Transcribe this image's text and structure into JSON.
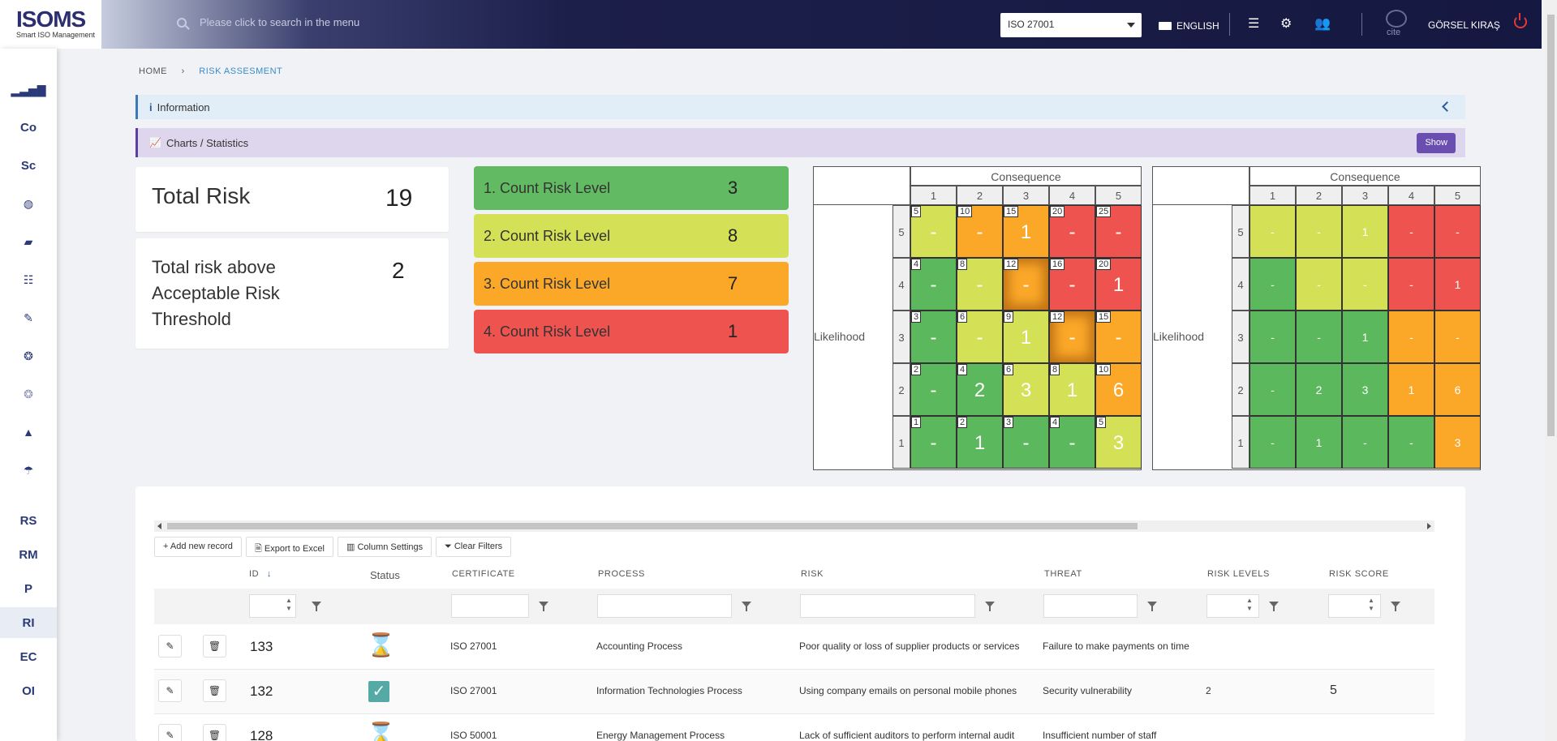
{
  "app": {
    "logo": "ISOMS",
    "logo_sub": "Smart ISO Management"
  },
  "header": {
    "search_placeholder": "Please click to search in the menu",
    "standard_selected": "ISO 27001",
    "language": "ENGLISH",
    "user_name": "GÖRSEL KIRAŞ",
    "avatar_label": "cite"
  },
  "sidebar": {
    "items": [
      {
        "label": "",
        "icon": "bar-chart-icon"
      },
      {
        "label": "Co",
        "icon": ""
      },
      {
        "label": "Sc",
        "icon": ""
      },
      {
        "label": "",
        "icon": "globe-icon"
      },
      {
        "label": "",
        "icon": "folder-open-icon"
      },
      {
        "label": "",
        "icon": "list-check-icon"
      },
      {
        "label": "",
        "icon": "wrench-icon"
      },
      {
        "label": "",
        "icon": "hands-globe-icon"
      },
      {
        "label": "",
        "icon": "hands-globe-light-icon"
      },
      {
        "label": "",
        "icon": "shapes-icon"
      },
      {
        "label": "",
        "icon": "umbrella-icon"
      },
      {
        "label": "RS",
        "icon": ""
      },
      {
        "label": "RM",
        "icon": ""
      },
      {
        "label": "P",
        "icon": ""
      },
      {
        "label": "RI",
        "icon": ""
      },
      {
        "label": "EC",
        "icon": ""
      },
      {
        "label": "OI",
        "icon": ""
      }
    ]
  },
  "breadcrumb": {
    "home": "HOME",
    "current": "RISK ASSESMENT"
  },
  "panels": {
    "information": "Information",
    "charts": "Charts / Statistics",
    "show_button": "Show"
  },
  "stats": {
    "total_risk_label": "Total Risk",
    "total_risk_value": "19",
    "above_threshold_label_1": "Total risk above",
    "above_threshold_label_2": "Acceptable Risk",
    "above_threshold_label_3": "Threshold",
    "above_threshold_value": "2"
  },
  "levels": [
    {
      "label": "1. Count Risk Level",
      "count": "3",
      "color": "#62bb62"
    },
    {
      "label": "2. Count Risk Level",
      "count": "8",
      "color": "#d4e157"
    },
    {
      "label": "3. Count Risk Level",
      "count": "7",
      "color": "#fba829"
    },
    {
      "label": "4. Count Risk Level",
      "count": "1",
      "color": "#ef5350"
    }
  ],
  "matrix": {
    "title": "Consequence",
    "row_label": "Likelihood",
    "columns": [
      "1",
      "2",
      "3",
      "4",
      "5"
    ],
    "rows": [
      "5",
      "4",
      "3",
      "2",
      "1"
    ],
    "colors": {
      "green": "#5cb85c",
      "yellow": "#d4e157",
      "orange": "#fba829",
      "red": "#ef5350"
    },
    "left_cells": [
      [
        {
          "n": "5",
          "v": "-",
          "c": "yellow"
        },
        {
          "n": "10",
          "v": "-",
          "c": "orange"
        },
        {
          "n": "15",
          "v": "1",
          "c": "orange"
        },
        {
          "n": "20",
          "v": "-",
          "c": "red"
        },
        {
          "n": "25",
          "v": "-",
          "c": "red"
        }
      ],
      [
        {
          "n": "4",
          "v": "-",
          "c": "green"
        },
        {
          "n": "8",
          "v": "-",
          "c": "yellow"
        },
        {
          "n": "12",
          "v": "-",
          "c": "orange",
          "glow": true
        },
        {
          "n": "16",
          "v": "-",
          "c": "red"
        },
        {
          "n": "20",
          "v": "1",
          "c": "red"
        }
      ],
      [
        {
          "n": "3",
          "v": "-",
          "c": "green"
        },
        {
          "n": "6",
          "v": "-",
          "c": "yellow"
        },
        {
          "n": "9",
          "v": "1",
          "c": "yellow"
        },
        {
          "n": "12",
          "v": "-",
          "c": "orange",
          "glow": true
        },
        {
          "n": "15",
          "v": "-",
          "c": "orange"
        }
      ],
      [
        {
          "n": "2",
          "v": "-",
          "c": "green"
        },
        {
          "n": "4",
          "v": "2",
          "c": "green"
        },
        {
          "n": "6",
          "v": "3",
          "c": "yellow"
        },
        {
          "n": "8",
          "v": "1",
          "c": "yellow"
        },
        {
          "n": "10",
          "v": "6",
          "c": "orange"
        }
      ],
      [
        {
          "n": "1",
          "v": "-",
          "c": "green"
        },
        {
          "n": "2",
          "v": "1",
          "c": "green"
        },
        {
          "n": "3",
          "v": "-",
          "c": "green"
        },
        {
          "n": "4",
          "v": "-",
          "c": "green"
        },
        {
          "n": "5",
          "v": "3",
          "c": "yellow"
        }
      ]
    ],
    "right_cells": [
      [
        {
          "v": "-",
          "c": "yellow"
        },
        {
          "v": "-",
          "c": "yellow"
        },
        {
          "v": "1",
          "c": "yellow"
        },
        {
          "v": "-",
          "c": "red"
        },
        {
          "v": "-",
          "c": "red"
        }
      ],
      [
        {
          "v": "-",
          "c": "green"
        },
        {
          "v": "-",
          "c": "yellow"
        },
        {
          "v": "-",
          "c": "yellow"
        },
        {
          "v": "-",
          "c": "red"
        },
        {
          "v": "1",
          "c": "red"
        }
      ],
      [
        {
          "v": "-",
          "c": "green"
        },
        {
          "v": "-",
          "c": "green"
        },
        {
          "v": "1",
          "c": "green"
        },
        {
          "v": "-",
          "c": "orange"
        },
        {
          "v": "-",
          "c": "orange"
        }
      ],
      [
        {
          "v": "-",
          "c": "green"
        },
        {
          "v": "2",
          "c": "green"
        },
        {
          "v": "3",
          "c": "green"
        },
        {
          "v": "1",
          "c": "orange"
        },
        {
          "v": "6",
          "c": "orange"
        }
      ],
      [
        {
          "v": "-",
          "c": "green"
        },
        {
          "v": "1",
          "c": "green"
        },
        {
          "v": "-",
          "c": "green"
        },
        {
          "v": "-",
          "c": "green"
        },
        {
          "v": "3",
          "c": "orange"
        }
      ]
    ]
  },
  "toolbar": {
    "add": "Add new record",
    "export": "Export to Excel",
    "columns": "Column Settings",
    "clear": "Clear Filters"
  },
  "table": {
    "headers": {
      "id": "ID",
      "status": "Status",
      "certificate": "CERTIFICATE",
      "process": "PROCESS",
      "risk": "RISK",
      "threat": "THREAT",
      "risk_levels": "RISK LEVELS",
      "risk_score": "RISK SCORE"
    },
    "rows": [
      {
        "id": "133",
        "status": "pending",
        "certificate": "ISO 27001",
        "process": "Accounting Process",
        "risk": "Poor quality or loss of supplier products or services",
        "threat": "Failure to make payments on time",
        "risk_level": "",
        "risk_score": ""
      },
      {
        "id": "132",
        "status": "done",
        "certificate": "ISO 27001",
        "process": "Information Technologies Process",
        "risk": "Using company emails on personal mobile phones",
        "threat": "Security vulnerability",
        "risk_level": "2",
        "risk_score": "5"
      },
      {
        "id": "128",
        "status": "pending",
        "certificate": "ISO 50001",
        "process": "Energy Management Process",
        "risk": "Lack of sufficient auditors to perform internal audit",
        "threat": "Insufficient number of staff",
        "risk_level": "",
        "risk_score": ""
      }
    ]
  }
}
